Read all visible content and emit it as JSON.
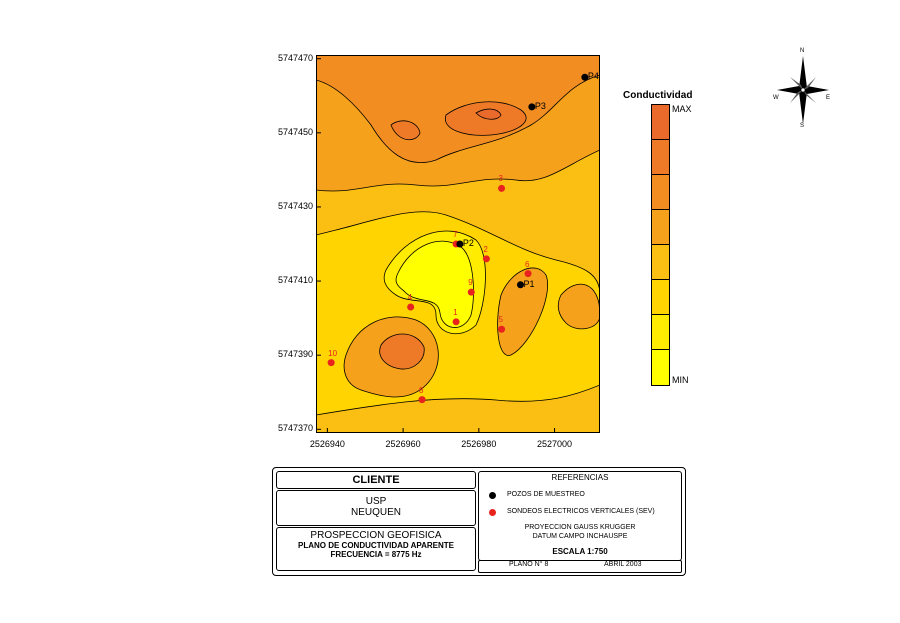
{
  "map": {
    "y_ticks": [
      "5747470",
      "5747450",
      "5747430",
      "5747410",
      "5747390",
      "5747370"
    ],
    "x_ticks": [
      "2526940",
      "2526960",
      "2526980",
      "2527000"
    ],
    "sev_points": [
      {
        "label": "1",
        "x": 2526974,
        "y": 5747399
      },
      {
        "label": "2",
        "x": 2526982,
        "y": 5747416
      },
      {
        "label": "3",
        "x": 2526986,
        "y": 5747435
      },
      {
        "label": "4",
        "x": 2526962,
        "y": 5747403
      },
      {
        "label": "5",
        "x": 2526986,
        "y": 5747397
      },
      {
        "label": "6",
        "x": 2526993,
        "y": 5747412
      },
      {
        "label": "7",
        "x": 2526974,
        "y": 5747420
      },
      {
        "label": "8",
        "x": 2526965,
        "y": 5747378
      },
      {
        "label": "9",
        "x": 2526978,
        "y": 5747407
      },
      {
        "label": "10",
        "x": 2526941,
        "y": 5747388
      }
    ],
    "wells": [
      {
        "label": "P1",
        "x": 2526991,
        "y": 5747409
      },
      {
        "label": "P2",
        "x": 2526975,
        "y": 5747420
      },
      {
        "label": "P3",
        "x": 2526994,
        "y": 5747457
      },
      {
        "label": "P4",
        "x": 2527008,
        "y": 5747465
      }
    ],
    "colors": [
      "#ffff00",
      "#ffec00",
      "#ffd400",
      "#fbbe12",
      "#f6a11c",
      "#f28d22",
      "#ee7a27",
      "#ea6a2b"
    ]
  },
  "legend": {
    "title": "Conductividad",
    "max_label": "MAX",
    "min_label": "MIN"
  },
  "compass": {
    "n": "N",
    "s": "S",
    "e": "E",
    "w": "W"
  },
  "cartouche": {
    "client_header": "CLIENTE",
    "client_line1": "USP",
    "client_line2": "NEUQUEN",
    "title_line1": "PROSPECCION GEOFISICA",
    "title_line2": "PLANO DE CONDUCTIVIDAD APARENTE",
    "title_line3": "FRECUENCIA = 8775 Hz",
    "refs_header": "REFERENCIAS",
    "ref_wells": "POZOS DE MUESTREO",
    "ref_sev": "SONDEOS ELECTRICOS VERTICALES (SEV)",
    "projection_line1": "PROYECCION GAUSS KRUGGER",
    "projection_line2": "DATUM CAMPO INCHAUSPE",
    "scale": "ESCALA 1:750",
    "plano": "PLANO N° 8",
    "date": "ABRIL 2003"
  }
}
